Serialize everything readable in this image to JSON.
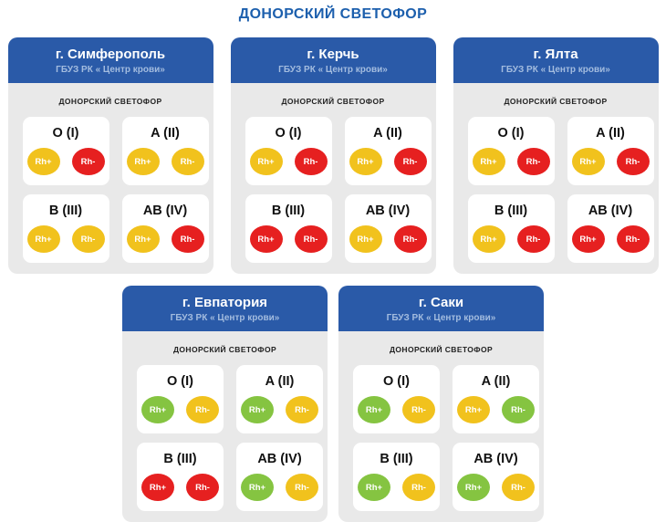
{
  "page_title": "ДОНОРСКИЙ СВЕТОФОР",
  "badge_labels": {
    "rh_plus": "Rh+",
    "rh_minus": "Rh-"
  },
  "status_colors": {
    "green": "#85c441",
    "yellow": "#f1c21d",
    "red": "#e62020"
  },
  "theme": {
    "title_blue": "#1c5fad",
    "header_blue": "#2a5aa8",
    "card_body_gray": "#e9e9e9"
  },
  "rows": [
    {
      "cards": [
        {
          "city": "г. Симферополь",
          "org": "ГБУЗ РК « Центр крови»",
          "board_label": "ДОНОРСКИЙ СВЕТОФОР",
          "groups": [
            {
              "name": "O (I)",
              "rh_plus": "yellow",
              "rh_minus": "red"
            },
            {
              "name": "A (II)",
              "rh_plus": "yellow",
              "rh_minus": "yellow"
            },
            {
              "name": "B (III)",
              "rh_plus": "yellow",
              "rh_minus": "yellow"
            },
            {
              "name": "AB (IV)",
              "rh_plus": "yellow",
              "rh_minus": "red"
            }
          ]
        },
        {
          "city": "г. Керчь",
          "org": "ГБУЗ РК « Центр крови»",
          "board_label": "ДОНОРСКИЙ СВЕТОФОР",
          "groups": [
            {
              "name": "O (I)",
              "rh_plus": "yellow",
              "rh_minus": "red"
            },
            {
              "name": "A (II)",
              "rh_plus": "yellow",
              "rh_minus": "red"
            },
            {
              "name": "B (III)",
              "rh_plus": "red",
              "rh_minus": "red"
            },
            {
              "name": "AB (IV)",
              "rh_plus": "yellow",
              "rh_minus": "red"
            }
          ]
        },
        {
          "city": "г. Ялта",
          "org": "ГБУЗ РК « Центр крови»",
          "board_label": "ДОНОРСКИЙ СВЕТОФОР",
          "groups": [
            {
              "name": "O (I)",
              "rh_plus": "yellow",
              "rh_minus": "red"
            },
            {
              "name": "A (II)",
              "rh_plus": "yellow",
              "rh_minus": "red"
            },
            {
              "name": "B (III)",
              "rh_plus": "yellow",
              "rh_minus": "red"
            },
            {
              "name": "AB (IV)",
              "rh_plus": "red",
              "rh_minus": "red"
            }
          ]
        }
      ]
    },
    {
      "cards": [
        {
          "city": "г. Евпатория",
          "org": "ГБУЗ РК « Центр крови»",
          "board_label": "ДОНОРСКИЙ СВЕТОФОР",
          "groups": [
            {
              "name": "O (I)",
              "rh_plus": "green",
              "rh_minus": "yellow"
            },
            {
              "name": "A (II)",
              "rh_plus": "green",
              "rh_minus": "yellow"
            },
            {
              "name": "B (III)",
              "rh_plus": "red",
              "rh_minus": "red"
            },
            {
              "name": "AB (IV)",
              "rh_plus": "green",
              "rh_minus": "yellow"
            }
          ]
        },
        {
          "city": "г. Саки",
          "org": "ГБУЗ РК « Центр крови»",
          "board_label": "ДОНОРСКИЙ СВЕТОФОР",
          "groups": [
            {
              "name": "O (I)",
              "rh_plus": "green",
              "rh_minus": "yellow"
            },
            {
              "name": "A (II)",
              "rh_plus": "yellow",
              "rh_minus": "green"
            },
            {
              "name": "B (III)",
              "rh_plus": "green",
              "rh_minus": "yellow"
            },
            {
              "name": "AB (IV)",
              "rh_plus": "green",
              "rh_minus": "yellow"
            }
          ]
        }
      ]
    }
  ]
}
